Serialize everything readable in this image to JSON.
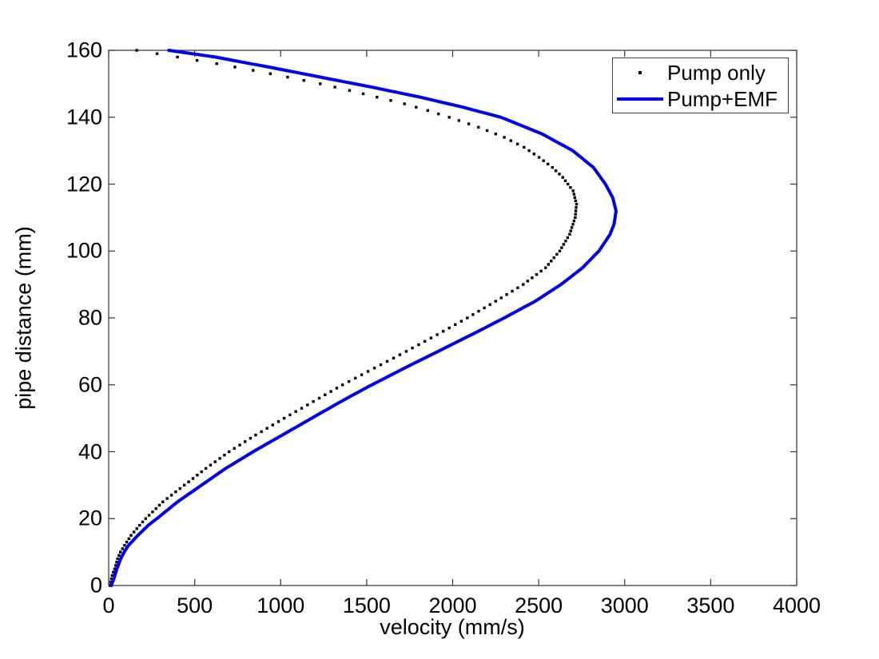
{
  "figure": {
    "background": "#ffffff",
    "axis_color": "#333333",
    "text_color": "#000000"
  },
  "chart_data": {
    "type": "line",
    "title": "",
    "xlabel": "velocity (mm/s)",
    "ylabel": "pipe distance (mm)",
    "xlim": [
      0,
      4000
    ],
    "ylim": [
      0,
      160
    ],
    "x_ticks": [
      0,
      500,
      1000,
      1500,
      2000,
      2500,
      3000,
      3500,
      4000
    ],
    "y_ticks": [
      0,
      20,
      40,
      60,
      80,
      100,
      120,
      140,
      160
    ],
    "grid": false,
    "legend_position": "top-right",
    "series": [
      {
        "name": "Pump only",
        "style": "dots",
        "color": "#000000",
        "marker_size": 3.4,
        "sample_step_mm": 1,
        "points_format": [
          "pipe_distance_mm",
          "velocity_mm_s"
        ],
        "points": [
          [
            0,
            8
          ],
          [
            3,
            20
          ],
          [
            5,
            35
          ],
          [
            8,
            52
          ],
          [
            10,
            68
          ],
          [
            13,
            105
          ],
          [
            15,
            130
          ],
          [
            18,
            180
          ],
          [
            20,
            215
          ],
          [
            25,
            315
          ],
          [
            30,
            440
          ],
          [
            35,
            565
          ],
          [
            40,
            700
          ],
          [
            45,
            855
          ],
          [
            50,
            1020
          ],
          [
            55,
            1190
          ],
          [
            60,
            1360
          ],
          [
            65,
            1545
          ],
          [
            70,
            1730
          ],
          [
            75,
            1910
          ],
          [
            80,
            2085
          ],
          [
            85,
            2250
          ],
          [
            90,
            2410
          ],
          [
            95,
            2540
          ],
          [
            100,
            2622
          ],
          [
            105,
            2680
          ],
          [
            110,
            2712
          ],
          [
            114,
            2720
          ],
          [
            118,
            2700
          ],
          [
            122,
            2640
          ],
          [
            125,
            2580
          ],
          [
            128,
            2502
          ],
          [
            131,
            2415
          ],
          [
            134,
            2300
          ],
          [
            137,
            2150
          ],
          [
            140,
            1980
          ],
          [
            142,
            1855
          ],
          [
            144,
            1720
          ],
          [
            146,
            1560
          ],
          [
            148,
            1400
          ],
          [
            150,
            1230
          ],
          [
            152,
            1040
          ],
          [
            154,
            840
          ],
          [
            156,
            628
          ],
          [
            158,
            400
          ],
          [
            160,
            163
          ]
        ]
      },
      {
        "name": "Pump+EMF",
        "style": "line",
        "color": "#0000EE",
        "line_width": 4,
        "points_format": [
          "pipe_distance_mm",
          "velocity_mm_s"
        ],
        "points": [
          [
            0,
            15
          ],
          [
            2,
            30
          ],
          [
            5,
            48
          ],
          [
            8,
            70
          ],
          [
            10,
            90
          ],
          [
            12,
            115
          ],
          [
            15,
            170
          ],
          [
            18,
            230
          ],
          [
            20,
            280
          ],
          [
            25,
            400
          ],
          [
            30,
            540
          ],
          [
            35,
            680
          ],
          [
            40,
            840
          ],
          [
            45,
            1010
          ],
          [
            50,
            1180
          ],
          [
            55,
            1350
          ],
          [
            60,
            1530
          ],
          [
            65,
            1720
          ],
          [
            70,
            1915
          ],
          [
            75,
            2110
          ],
          [
            80,
            2300
          ],
          [
            85,
            2480
          ],
          [
            90,
            2630
          ],
          [
            95,
            2755
          ],
          [
            100,
            2850
          ],
          [
            105,
            2915
          ],
          [
            108,
            2938
          ],
          [
            112,
            2950
          ],
          [
            116,
            2930
          ],
          [
            120,
            2888
          ],
          [
            125,
            2818
          ],
          [
            130,
            2698
          ],
          [
            135,
            2520
          ],
          [
            140,
            2280
          ],
          [
            143,
            2060
          ],
          [
            146,
            1810
          ],
          [
            149,
            1530
          ],
          [
            152,
            1230
          ],
          [
            155,
            930
          ],
          [
            158,
            620
          ],
          [
            160,
            350
          ]
        ]
      }
    ]
  },
  "legend": {
    "border_color": "#444444",
    "items": [
      {
        "label": "Pump only",
        "marker": "dot-marker-icon",
        "color": "#000000"
      },
      {
        "label": "Pump+EMF",
        "marker": "line-marker-icon",
        "color": "#0000EE"
      }
    ]
  }
}
